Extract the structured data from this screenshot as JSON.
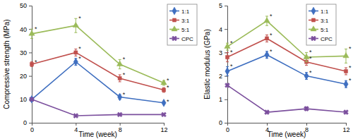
{
  "chart_data": [
    {
      "type": "line",
      "x_label": "Time (week)",
      "y_label": "Compressive strength (MPa)",
      "x": [
        0,
        4,
        8,
        12
      ],
      "xlim": [
        0,
        12
      ],
      "xticks": [
        0,
        4,
        8,
        12
      ],
      "ylim": [
        0,
        50
      ],
      "yticks": [
        0,
        10,
        20,
        30,
        40,
        50
      ],
      "legend": "right",
      "series": [
        {
          "name": "1:1",
          "color": "#3f6fc0",
          "marker": "diamond",
          "values": [
            10,
            26,
            11,
            8.5
          ],
          "errors": [
            0.5,
            1.5,
            1,
            0.5
          ],
          "annotations": [
            null,
            "*",
            "*",
            "*"
          ]
        },
        {
          "name": "3:1",
          "color": "#c0504d",
          "marker": "square",
          "values": [
            25,
            30,
            19,
            14
          ],
          "errors": [
            1,
            1.5,
            1.5,
            1
          ],
          "annotations": [
            "*",
            "*",
            "*",
            "*"
          ]
        },
        {
          "name": "5:1",
          "color": "#9bbb59",
          "marker": "triangle",
          "values": [
            38,
            41.5,
            25,
            17
          ],
          "errors": [
            2,
            3,
            2,
            1
          ],
          "annotations": [
            "*",
            "*",
            "*",
            "*"
          ]
        },
        {
          "name": "CPC",
          "color": "#7b4f9d",
          "marker": "x",
          "values": [
            10,
            3,
            3.5,
            3.5
          ],
          "errors": [
            0.3,
            0.3,
            0.3,
            0.3
          ]
        }
      ]
    },
    {
      "type": "line",
      "x_label": "Time (week)",
      "y_label": "Elastic modulus (GPa)",
      "x": [
        0,
        4,
        8,
        12
      ],
      "xlim": [
        0,
        12
      ],
      "xticks": [
        0,
        4,
        8,
        12
      ],
      "ylim": [
        0,
        5
      ],
      "yticks": [
        0,
        1,
        2,
        3,
        4,
        5
      ],
      "legend": "top-right",
      "series": [
        {
          "name": "1:1",
          "color": "#3f6fc0",
          "marker": "diamond",
          "values": [
            2.2,
            2.9,
            2.0,
            1.65
          ],
          "errors": [
            0.2,
            0.15,
            0.15,
            0.15
          ],
          "annotations": [
            "*",
            "*",
            "*",
            "*"
          ]
        },
        {
          "name": "3:1",
          "color": "#c0504d",
          "marker": "square",
          "values": [
            2.8,
            3.6,
            2.6,
            2.2
          ],
          "errors": [
            0.2,
            0.15,
            0.15,
            0.15
          ],
          "annotations": [
            "*",
            "*",
            "*",
            "*"
          ]
        },
        {
          "name": "5:1",
          "color": "#9bbb59",
          "marker": "triangle",
          "values": [
            3.25,
            4.35,
            2.8,
            2.85
          ],
          "errors": [
            0.15,
            0.2,
            0.2,
            0.3
          ],
          "annotations": [
            "*",
            "*",
            "*",
            "*"
          ]
        },
        {
          "name": "CPC",
          "color": "#7b4f9d",
          "marker": "x",
          "values": [
            1.6,
            0.45,
            0.6,
            0.45
          ],
          "errors": [
            0.05,
            0.05,
            0.08,
            0.05
          ]
        }
      ]
    }
  ]
}
